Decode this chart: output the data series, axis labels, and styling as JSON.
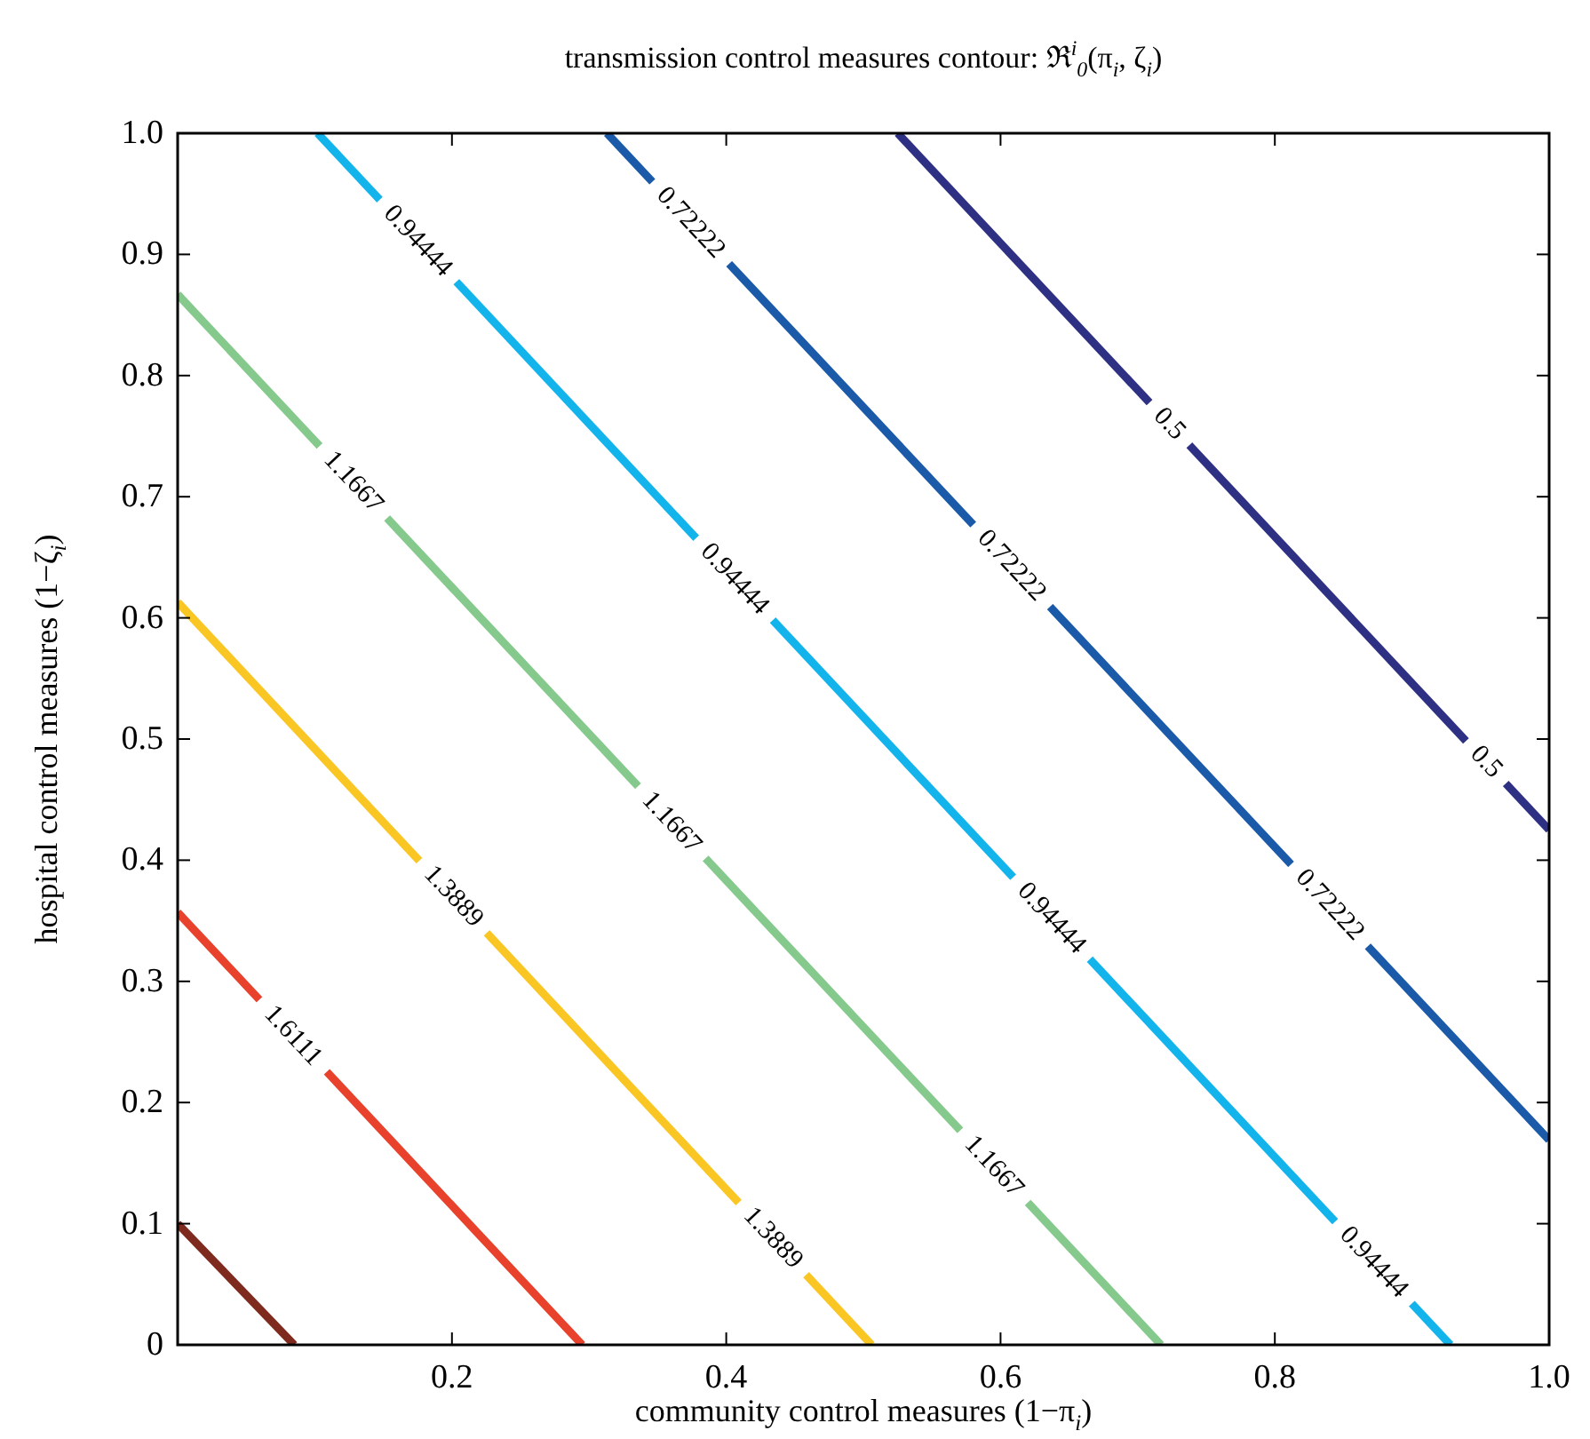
{
  "chart_data": {
    "type": "line",
    "title": "transmission control measures contour: ℜ$^{i}$$_{0}$(π$_{i}$, ζ$_{i}$)",
    "xlabel": "community control measures (1−π$_{i}$)",
    "ylabel": "hospital control measures (1−ζ$_{i}$)",
    "xlim": [
      0,
      1
    ],
    "ylim": [
      0,
      1
    ],
    "xticks": [
      {
        "value": 0,
        "label": null
      },
      0.2,
      0.4,
      0.6,
      0.8,
      {
        "value": 1,
        "label": "1.0"
      }
    ],
    "yticks": [
      0,
      0.1,
      0.2,
      0.3,
      0.4,
      0.5,
      0.6,
      0.7,
      0.8,
      0.9,
      {
        "value": 1,
        "label": "1.0"
      }
    ],
    "grid": false,
    "marker": "none",
    "line_style": "solid",
    "series": [
      {
        "color": "#7f2a1e",
        "x": [
          0,
          0.085
        ],
        "values": [
          0.1,
          0
        ]
      },
      {
        "color": "#e8412c",
        "x": [
          0,
          0.295
        ],
        "values": [
          0.357,
          0
        ]
      },
      {
        "color": "#f9c623",
        "x": [
          0,
          0.506
        ],
        "values": [
          0.613,
          0
        ]
      },
      {
        "color": "#86c98c",
        "x": [
          0,
          0.717
        ],
        "values": [
          0.867,
          0
        ]
      },
      {
        "color": "#13b4ec",
        "x": [
          0.102,
          0.928
        ],
        "values": [
          1,
          0
        ]
      },
      {
        "color": "#1b5aa8",
        "x": [
          0.313,
          1
        ],
        "values": [
          1,
          0.169
        ]
      },
      {
        "color": "#2e3183",
        "x": [
          0.525,
          1
        ],
        "values": [
          1,
          0.425
        ]
      }
    ],
    "annotations": [
      {
        "text": "1.6111",
        "x": 0.084,
        "y": 0.255
      },
      {
        "text": "1.3889",
        "x": 0.201,
        "y": 0.37
      },
      {
        "text": "1.3889",
        "x": 0.434,
        "y": 0.088
      },
      {
        "text": "1.1667",
        "x": 0.128,
        "y": 0.712
      },
      {
        "text": "1.1667",
        "x": 0.36,
        "y": 0.431
      },
      {
        "text": "1.1667",
        "x": 0.595,
        "y": 0.147
      },
      {
        "text": "0.94444",
        "x": 0.175,
        "y": 0.911
      },
      {
        "text": "0.94444",
        "x": 0.406,
        "y": 0.632
      },
      {
        "text": "0.94444",
        "x": 0.637,
        "y": 0.352
      },
      {
        "text": "0.94444",
        "x": 0.872,
        "y": 0.068
      },
      {
        "text": "0.72222",
        "x": 0.374,
        "y": 0.926
      },
      {
        "text": "0.72222",
        "x": 0.608,
        "y": 0.643
      },
      {
        "text": "0.72222",
        "x": 0.84,
        "y": 0.363
      },
      {
        "text": "0.5",
        "x": 0.723,
        "y": 0.76
      },
      {
        "text": "0.5",
        "x": 0.954,
        "y": 0.481
      }
    ]
  }
}
